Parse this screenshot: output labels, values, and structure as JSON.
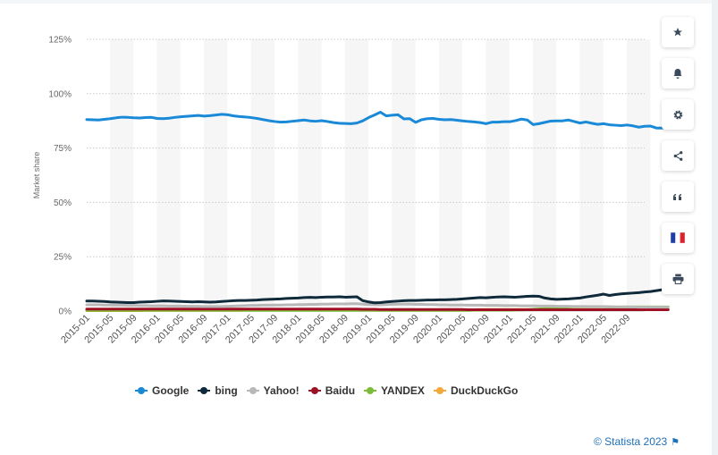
{
  "chart_data": {
    "type": "line",
    "ylabel": "Market share",
    "xlabel": "",
    "ylim": [
      0,
      125
    ],
    "y_ticks": [
      "0%",
      "25%",
      "50%",
      "75%",
      "100%",
      "125%"
    ],
    "y_tick_values": [
      0,
      25,
      50,
      75,
      100,
      125
    ],
    "x_ticks": [
      "2015-01",
      "2015-05",
      "2015-09",
      "2016-01",
      "2016-05",
      "2016-09",
      "2017-01",
      "2017-05",
      "2017-09",
      "2018-01",
      "2018-05",
      "2018-09",
      "2019-01",
      "2019-05",
      "2019-09",
      "2020-01",
      "2020-05",
      "2020-09",
      "2021-01",
      "2021-05",
      "2021-09",
      "2022-01",
      "2022-05",
      "2022-09"
    ],
    "grid": true,
    "legend_position": "bottom",
    "x_start": "2015-01",
    "x_end": "2022-12",
    "series": [
      {
        "name": "Google",
        "color": "#1a8ad8",
        "values": [
          88.1,
          88.0,
          87.9,
          88.2,
          88.5,
          88.9,
          89.2,
          89.1,
          88.9,
          88.8,
          89.0,
          89.1,
          88.6,
          88.5,
          88.7,
          89.1,
          89.4,
          89.6,
          89.8,
          90.0,
          89.7,
          89.9,
          90.2,
          90.5,
          90.3,
          89.8,
          89.5,
          89.3,
          89.0,
          88.6,
          88.1,
          87.6,
          87.2,
          86.9,
          87.0,
          87.3,
          87.6,
          87.9,
          87.5,
          87.3,
          87.6,
          87.2,
          86.7,
          86.4,
          86.3,
          86.2,
          86.5,
          87.5,
          89.0,
          90.2,
          91.5,
          89.8,
          90.1,
          90.3,
          88.4,
          88.5,
          86.8,
          88.0,
          88.5,
          88.6,
          88.2,
          88.0,
          88.1,
          87.8,
          87.5,
          87.2,
          87.0,
          86.7,
          86.2,
          86.9,
          86.9,
          87.1,
          87.1,
          87.6,
          88.3,
          87.9,
          85.8,
          86.2,
          86.8,
          87.4,
          87.5,
          87.5,
          87.9,
          87.2,
          86.5,
          87.0,
          86.4,
          85.9,
          86.2,
          85.7,
          85.5,
          85.3,
          85.6,
          85.2,
          84.6,
          85.0,
          85.1,
          84.2,
          84.2,
          84.4
        ]
      },
      {
        "name": "bing",
        "color": "#0f2a3a",
        "values": [
          4.6,
          4.6,
          4.5,
          4.4,
          4.2,
          4.1,
          4.0,
          3.9,
          3.9,
          4.1,
          4.2,
          4.3,
          4.5,
          4.7,
          4.6,
          4.5,
          4.4,
          4.3,
          4.2,
          4.3,
          4.2,
          4.1,
          4.2,
          4.4,
          4.6,
          4.8,
          4.9,
          4.9,
          5.0,
          5.1,
          5.3,
          5.4,
          5.5,
          5.6,
          5.8,
          5.9,
          6.0,
          6.2,
          6.3,
          6.2,
          6.4,
          6.5,
          6.5,
          6.6,
          6.4,
          6.5,
          6.6,
          4.8,
          4.2,
          3.8,
          3.9,
          4.2,
          4.4,
          4.6,
          4.8,
          4.9,
          4.9,
          5.0,
          5.1,
          5.1,
          5.2,
          5.2,
          5.3,
          5.4,
          5.6,
          5.8,
          6.0,
          6.2,
          6.1,
          6.3,
          6.5,
          6.6,
          6.5,
          6.4,
          6.6,
          6.8,
          6.9,
          6.8,
          6.0,
          5.6,
          5.4,
          5.5,
          5.6,
          5.8,
          6.0,
          6.5,
          6.9,
          7.3,
          7.8,
          7.2,
          7.6,
          7.9,
          8.1,
          8.3,
          8.5,
          8.8,
          9.0,
          9.4,
          9.8,
          9.5
        ]
      },
      {
        "name": "Yahoo!",
        "color": "#b8b8b8",
        "values": [
          2.9,
          2.9,
          2.9,
          2.8,
          2.8,
          2.7,
          2.7,
          2.6,
          2.6,
          2.5,
          2.5,
          2.4,
          2.4,
          2.4,
          2.3,
          2.3,
          2.3,
          2.2,
          2.2,
          2.2,
          2.1,
          2.1,
          2.1,
          2.1,
          2.2,
          2.3,
          2.4,
          2.5,
          2.6,
          2.6,
          2.7,
          2.7,
          2.8,
          2.8,
          2.9,
          2.9,
          3.0,
          3.0,
          3.1,
          3.1,
          3.2,
          3.2,
          3.3,
          3.3,
          3.3,
          3.4,
          3.4,
          3.2,
          3.0,
          2.9,
          2.9,
          3.0,
          3.1,
          3.2,
          3.2,
          3.2,
          3.1,
          3.1,
          3.0,
          3.0,
          2.9,
          2.9,
          2.8,
          2.8,
          2.8,
          2.7,
          2.7,
          2.7,
          2.6,
          2.6,
          2.6,
          2.5,
          2.5,
          2.5,
          2.4,
          2.4,
          2.4,
          2.3,
          2.3,
          2.3,
          2.2,
          2.2,
          2.2,
          2.1,
          2.1,
          2.1,
          2.0,
          2.0,
          2.0,
          2.0,
          1.9,
          1.9,
          1.9,
          1.9,
          1.8,
          1.8,
          1.8,
          1.8,
          1.8,
          1.8
        ]
      },
      {
        "name": "Baidu",
        "color": "#a01025",
        "values": [
          0.9,
          0.9,
          0.9,
          0.9,
          0.9,
          0.9,
          0.9,
          0.9,
          0.9,
          0.9,
          0.9,
          0.9,
          0.9,
          0.9,
          0.9,
          0.9,
          0.9,
          0.9,
          0.9,
          0.9,
          0.9,
          0.9,
          0.9,
          0.9,
          0.9,
          0.9,
          0.9,
          0.9,
          0.9,
          0.9,
          0.9,
          0.9,
          0.9,
          0.9,
          0.9,
          0.9,
          0.9,
          0.9,
          0.9,
          0.9,
          0.9,
          0.9,
          0.9,
          0.9,
          0.9,
          0.9,
          0.9,
          0.8,
          0.8,
          0.8,
          0.7,
          0.7,
          0.7,
          0.7,
          0.7,
          0.7,
          0.7,
          0.7,
          0.7,
          0.7,
          0.7,
          0.7,
          0.7,
          0.7,
          0.7,
          0.6,
          0.6,
          0.6,
          0.6,
          0.6,
          0.6,
          0.6,
          0.6,
          0.6,
          0.6,
          0.6,
          0.6,
          0.6,
          0.6,
          0.6,
          0.6,
          0.6,
          0.6,
          0.6,
          0.6,
          0.6,
          0.6,
          0.6,
          0.6,
          0.6,
          0.6,
          0.6,
          0.6,
          0.6,
          0.6,
          0.6,
          0.6,
          0.6,
          0.6,
          0.6
        ]
      },
      {
        "name": "YANDEX",
        "color": "#7cbc3a",
        "values": [
          0.3,
          0.3,
          0.3,
          0.3,
          0.3,
          0.3,
          0.3,
          0.3,
          0.3,
          0.3,
          0.3,
          0.3,
          0.3,
          0.3,
          0.3,
          0.3,
          0.3,
          0.3,
          0.3,
          0.3,
          0.3,
          0.3,
          0.3,
          0.3,
          0.3,
          0.3,
          0.3,
          0.3,
          0.3,
          0.3,
          0.3,
          0.3,
          0.3,
          0.3,
          0.3,
          0.3,
          0.3,
          0.3,
          0.3,
          0.3,
          0.3,
          0.3,
          0.3,
          0.3,
          0.3,
          0.3,
          0.3,
          0.3,
          0.3,
          0.3,
          0.3,
          0.3,
          0.3,
          0.3,
          0.3,
          0.3,
          0.3,
          0.3,
          0.3,
          0.3,
          0.3,
          0.3,
          0.3,
          0.3,
          0.3,
          0.3,
          0.4,
          0.4,
          0.4,
          0.4,
          0.4,
          0.4,
          0.4,
          0.5,
          0.5,
          0.6,
          0.8,
          1.0,
          1.2,
          1.4,
          1.6,
          1.8,
          1.9,
          2.0,
          2.0,
          2.0,
          2.0,
          2.0,
          2.0,
          1.9,
          1.9,
          1.9,
          1.9,
          1.9,
          1.9,
          1.9,
          1.9,
          1.9,
          1.9,
          1.9
        ]
      },
      {
        "name": "DuckDuckGo",
        "color": "#f3a83b",
        "values": [
          0.2,
          0.2,
          0.2,
          0.2,
          0.2,
          0.2,
          0.2,
          0.2,
          0.2,
          0.2,
          0.3,
          0.3,
          0.3,
          0.3,
          0.3,
          0.3,
          0.3,
          0.3,
          0.3,
          0.3,
          0.3,
          0.3,
          0.3,
          0.3,
          0.3,
          0.3,
          0.3,
          0.4,
          0.4,
          0.4,
          0.4,
          0.4,
          0.4,
          0.4,
          0.4,
          0.4,
          0.4,
          0.4,
          0.4,
          0.4,
          0.4,
          0.5,
          0.5,
          0.5,
          0.5,
          0.5,
          0.5,
          0.5,
          0.5,
          0.5,
          0.5,
          0.5,
          0.6,
          0.6,
          0.6,
          0.6,
          0.6,
          0.6,
          0.6,
          0.6,
          0.6,
          0.6,
          0.6,
          0.6,
          0.6,
          0.6,
          0.6,
          0.7,
          0.7,
          0.7,
          0.7,
          0.7,
          0.7,
          0.7,
          0.7,
          0.7,
          0.7,
          0.7,
          0.7,
          0.7,
          0.7,
          0.7,
          0.7,
          0.7,
          0.7,
          0.7,
          0.7,
          0.7,
          0.7,
          0.7,
          0.7,
          0.7,
          0.7,
          0.7,
          0.7,
          0.7,
          0.7,
          0.7,
          0.7,
          0.7
        ]
      }
    ]
  },
  "tools": [
    {
      "name": "star-icon",
      "glyph": "★"
    },
    {
      "name": "bell-icon",
      "glyph": "bell"
    },
    {
      "name": "gear-icon",
      "glyph": "⚙"
    },
    {
      "name": "share-icon",
      "glyph": "share"
    },
    {
      "name": "quote-icon",
      "glyph": "❝"
    },
    {
      "name": "flag-fr-icon",
      "glyph": "fr"
    },
    {
      "name": "print-icon",
      "glyph": "print"
    }
  ],
  "credit": {
    "text": "© Statista 2023"
  }
}
